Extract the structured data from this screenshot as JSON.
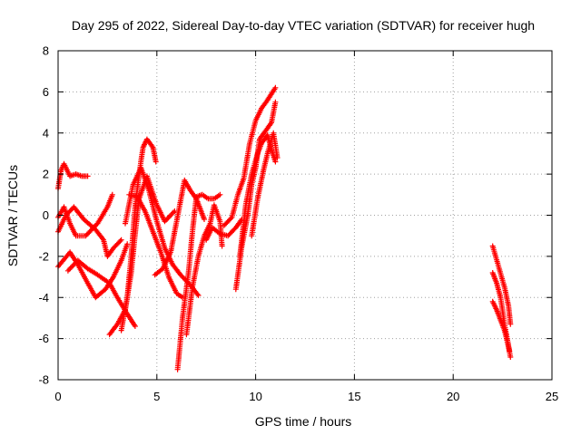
{
  "chart_data": {
    "type": "scatter",
    "title": "Day 295 of 2022, Sidereal Day-to-day VTEC variation (SDTVAR) for receiver hugh",
    "xlabel": "GPS time / hours",
    "ylabel": "SDTVAR / TECUs",
    "xlim": [
      0,
      25
    ],
    "ylim": [
      -8,
      8
    ],
    "xticks": [
      0,
      5,
      10,
      15,
      20,
      25
    ],
    "yticks": [
      -8,
      -6,
      -4,
      -2,
      0,
      2,
      4,
      6,
      8
    ],
    "grid": true,
    "marker": "+",
    "color": "#ff0000",
    "series": [
      {
        "name": "s1",
        "points": [
          [
            0,
            1.3
          ],
          [
            0.15,
            2.2
          ],
          [
            0.3,
            2.5
          ],
          [
            0.6,
            1.9
          ],
          [
            0.9,
            2.0
          ],
          [
            1.2,
            1.9
          ],
          [
            1.5,
            1.9
          ]
        ]
      },
      {
        "name": "s2",
        "points": [
          [
            0,
            -0.1
          ],
          [
            0.3,
            0.4
          ],
          [
            0.6,
            -0.4
          ],
          [
            0.9,
            -1.0
          ],
          [
            1.4,
            -1.0
          ],
          [
            2.0,
            -0.4
          ],
          [
            2.5,
            0.4
          ],
          [
            2.75,
            1.0
          ]
        ]
      },
      {
        "name": "s3",
        "points": [
          [
            0,
            -0.8
          ],
          [
            0.4,
            0.0
          ],
          [
            0.8,
            0.4
          ],
          [
            1.3,
            -0.2
          ],
          [
            1.9,
            -0.7
          ],
          [
            2.3,
            -1.2
          ],
          [
            2.5,
            -2.0
          ],
          [
            2.8,
            -1.6
          ],
          [
            3.2,
            -1.2
          ]
        ]
      },
      {
        "name": "s4",
        "points": [
          [
            0,
            -2.5
          ],
          [
            0.6,
            -1.8
          ],
          [
            1.0,
            -2.4
          ],
          [
            1.5,
            -3.3
          ],
          [
            1.9,
            -4.0
          ],
          [
            2.4,
            -3.6
          ],
          [
            2.8,
            -3.0
          ],
          [
            3.2,
            -2.2
          ],
          [
            3.5,
            -1.4
          ]
        ]
      },
      {
        "name": "s5",
        "points": [
          [
            0.5,
            -2.7
          ],
          [
            1.0,
            -2.2
          ],
          [
            1.5,
            -2.6
          ],
          [
            2.0,
            -2.9
          ],
          [
            2.6,
            -3.3
          ],
          [
            3.0,
            -4.0
          ],
          [
            3.5,
            -4.8
          ],
          [
            3.9,
            -5.4
          ]
        ]
      },
      {
        "name": "s6",
        "points": [
          [
            2.6,
            -5.8
          ],
          [
            3.0,
            -5.3
          ],
          [
            3.4,
            -4.6
          ],
          [
            3.7,
            -2.8
          ],
          [
            3.9,
            -0.9
          ],
          [
            4.1,
            0.8
          ],
          [
            4.5,
            1.9
          ],
          [
            5.0,
            0.5
          ],
          [
            5.4,
            -0.3
          ],
          [
            5.9,
            0.2
          ]
        ]
      },
      {
        "name": "s7",
        "points": [
          [
            3.2,
            -5.6
          ],
          [
            3.5,
            -4.0
          ],
          [
            3.7,
            -2.0
          ],
          [
            3.9,
            0.4
          ],
          [
            4.1,
            2.0
          ],
          [
            4.3,
            3.3
          ],
          [
            4.5,
            3.7
          ],
          [
            4.8,
            3.3
          ],
          [
            4.95,
            2.6
          ]
        ]
      },
      {
        "name": "s8",
        "points": [
          [
            3.4,
            -0.4
          ],
          [
            3.8,
            1.5
          ],
          [
            4.2,
            2.3
          ],
          [
            4.6,
            1.2
          ],
          [
            5.0,
            -0.3
          ],
          [
            5.4,
            -1.6
          ],
          [
            5.8,
            -2.4
          ],
          [
            6.2,
            -2.9
          ],
          [
            6.7,
            -3.4
          ],
          [
            7.1,
            -3.9
          ]
        ]
      },
      {
        "name": "s9",
        "points": [
          [
            3.6,
            1.0
          ],
          [
            4.0,
            0.9
          ],
          [
            4.4,
            0.2
          ],
          [
            4.8,
            -0.8
          ],
          [
            5.2,
            -1.8
          ],
          [
            5.6,
            -3.0
          ],
          [
            6.0,
            -3.8
          ],
          [
            6.3,
            -4.0
          ]
        ]
      },
      {
        "name": "s10",
        "points": [
          [
            4.9,
            -2.9
          ],
          [
            5.3,
            -2.6
          ],
          [
            5.7,
            -1.8
          ],
          [
            6.1,
            0.2
          ],
          [
            6.4,
            1.7
          ],
          [
            6.7,
            1.2
          ],
          [
            7.0,
            0.8
          ],
          [
            7.2,
            0.3
          ],
          [
            7.4,
            -0.2
          ]
        ]
      },
      {
        "name": "s11",
        "points": [
          [
            6.05,
            -7.5
          ],
          [
            6.3,
            -5.0
          ],
          [
            6.6,
            -2.8
          ],
          [
            6.8,
            -0.8
          ],
          [
            7.0,
            0.9
          ],
          [
            7.3,
            1.0
          ],
          [
            7.6,
            0.8
          ],
          [
            7.9,
            0.8
          ],
          [
            8.2,
            1.0
          ]
        ]
      },
      {
        "name": "s12",
        "points": [
          [
            6.5,
            -5.8
          ],
          [
            6.8,
            -3.5
          ],
          [
            7.1,
            -2.0
          ],
          [
            7.4,
            -1.0
          ],
          [
            7.7,
            -0.4
          ],
          [
            7.9,
            0.5
          ],
          [
            8.2,
            -0.3
          ],
          [
            8.3,
            -1.5
          ]
        ]
      },
      {
        "name": "s13",
        "points": [
          [
            7.5,
            -1.2
          ],
          [
            7.8,
            -0.6
          ],
          [
            8.2,
            -0.9
          ],
          [
            8.6,
            -1.0
          ],
          [
            9.0,
            -0.6
          ],
          [
            9.3,
            -0.2
          ]
        ]
      },
      {
        "name": "s14",
        "points": [
          [
            8.4,
            -0.5
          ],
          [
            8.8,
            -0.1
          ],
          [
            9.1,
            1.0
          ],
          [
            9.4,
            1.8
          ],
          [
            9.7,
            3.5
          ],
          [
            10.0,
            4.6
          ],
          [
            10.3,
            5.2
          ],
          [
            10.6,
            5.6
          ],
          [
            11.0,
            6.2
          ]
        ]
      },
      {
        "name": "s15",
        "points": [
          [
            9.0,
            -3.6
          ],
          [
            9.3,
            -1.5
          ],
          [
            9.6,
            0.0
          ],
          [
            9.8,
            1.5
          ],
          [
            10.0,
            2.3
          ],
          [
            10.2,
            3.7
          ],
          [
            10.5,
            4.1
          ],
          [
            10.8,
            4.5
          ],
          [
            11.0,
            5.5
          ]
        ]
      },
      {
        "name": "s16",
        "points": [
          [
            9.2,
            -2.0
          ],
          [
            9.5,
            0.5
          ],
          [
            9.8,
            2.0
          ],
          [
            10.1,
            3.0
          ],
          [
            10.3,
            3.5
          ],
          [
            10.6,
            3.9
          ],
          [
            10.8,
            3.2
          ],
          [
            11.0,
            2.6
          ]
        ]
      },
      {
        "name": "s17",
        "points": [
          [
            9.8,
            -1.0
          ],
          [
            10.1,
            0.8
          ],
          [
            10.4,
            2.2
          ],
          [
            10.6,
            3.0
          ],
          [
            10.9,
            4.0
          ],
          [
            11.1,
            2.8
          ]
        ]
      },
      {
        "name": "s18",
        "points": [
          [
            22.0,
            -1.5
          ],
          [
            22.3,
            -2.5
          ],
          [
            22.6,
            -3.5
          ],
          [
            22.8,
            -4.4
          ],
          [
            22.9,
            -5.3
          ]
        ]
      },
      {
        "name": "s19",
        "points": [
          [
            22.0,
            -2.8
          ],
          [
            22.2,
            -3.3
          ],
          [
            22.4,
            -4.0
          ],
          [
            22.6,
            -5.3
          ],
          [
            22.85,
            -6.6
          ]
        ]
      },
      {
        "name": "s20",
        "points": [
          [
            22.0,
            -4.2
          ],
          [
            22.2,
            -4.6
          ],
          [
            22.4,
            -5.1
          ],
          [
            22.6,
            -5.6
          ],
          [
            22.8,
            -6.4
          ],
          [
            22.9,
            -6.9
          ]
        ]
      }
    ]
  }
}
